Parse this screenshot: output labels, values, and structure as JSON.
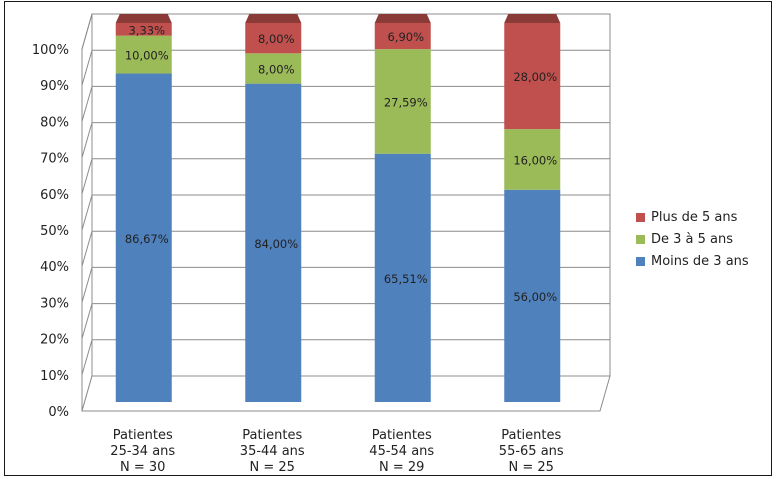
{
  "chart_data": {
    "type": "bar",
    "stacked": true,
    "percent_stacked": true,
    "categories": [
      [
        "Patientes",
        "25-34 ans",
        "N = 30"
      ],
      [
        "Patientes",
        "35-44 ans",
        "N = 25"
      ],
      [
        "Patientes",
        "45-54 ans",
        "N = 29"
      ],
      [
        "Patientes",
        "55-65 ans",
        "N = 25"
      ]
    ],
    "series": [
      {
        "name": "Moins de 3 ans",
        "color": "#4f81bd",
        "values": [
          86.67,
          84.0,
          65.51,
          56.0
        ],
        "labels": [
          "86,67%",
          "84,00%",
          "65,51%",
          "56,00%"
        ]
      },
      {
        "name": "De 3 à 5 ans",
        "color": "#9bbb59",
        "values": [
          10.0,
          8.0,
          27.59,
          16.0
        ],
        "labels": [
          "10,00%",
          "8,00%",
          "27,59%",
          "16,00%"
        ]
      },
      {
        "name": "Plus de 5 ans",
        "color": "#c0504d",
        "values": [
          3.33,
          8.0,
          6.9,
          28.0
        ],
        "labels": [
          "3,33%",
          "8,00%",
          "6,90%",
          "28,00%"
        ]
      }
    ],
    "yticks": [
      "0%",
      "10%",
      "20%",
      "30%",
      "40%",
      "50%",
      "60%",
      "70%",
      "80%",
      "90%",
      "100%"
    ],
    "ylim": [
      0,
      100
    ],
    "grid": true,
    "legend_position": "right",
    "title": "",
    "xlabel": "",
    "ylabel": ""
  }
}
